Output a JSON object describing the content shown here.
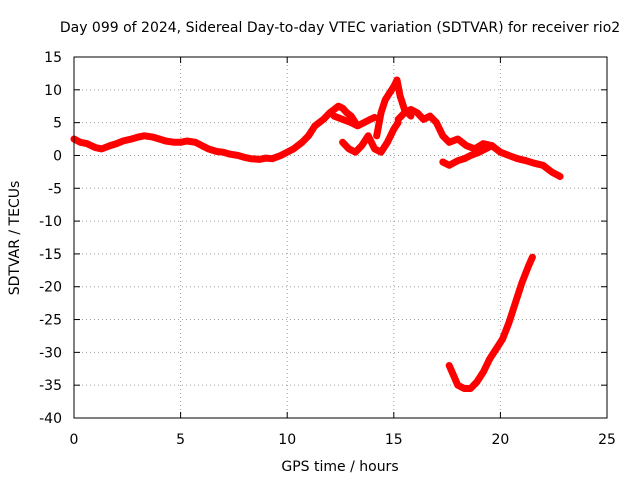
{
  "chart_data": {
    "type": "line",
    "title": "Day 099 of 2024, Sidereal Day-to-day VTEC variation (SDTVAR) for receiver rio2",
    "xlabel": "GPS time / hours",
    "ylabel": "SDTVAR / TECUs",
    "xlim": [
      0,
      25
    ],
    "ylim": [
      -40,
      15
    ],
    "xticks": [
      0,
      5,
      10,
      15,
      20,
      25
    ],
    "xtick_labels": [
      "0",
      "5",
      "10",
      "15",
      "20",
      "25"
    ],
    "yticks": [
      15,
      10,
      5,
      0,
      -5,
      -10,
      -15,
      -20,
      -25,
      -30,
      -35,
      -40
    ],
    "ytick_labels": [
      "15",
      "10",
      "5",
      "0",
      "-5",
      "-10",
      "-15",
      "-20",
      "-25",
      "-30",
      "-35",
      "-40"
    ],
    "grid": true,
    "legend": "none",
    "series_color": "#ff0000",
    "series": [
      {
        "name": "main-trace",
        "x": [
          0.0,
          0.3,
          0.6,
          1.0,
          1.3,
          1.7,
          2.0,
          2.3,
          2.7,
          3.0,
          3.3,
          3.7,
          4.0,
          4.3,
          4.7,
          5.0,
          5.3,
          5.7,
          6.0,
          6.3,
          6.7,
          7.0,
          7.3,
          7.7,
          8.0,
          8.3,
          8.7,
          9.0,
          9.3,
          9.7,
          10.0,
          10.3,
          10.7,
          11.0,
          11.3,
          11.7,
          12.0,
          12.2,
          12.4,
          12.6,
          12.8,
          13.0,
          13.2
        ],
        "y": [
          2.5,
          2.0,
          1.8,
          1.2,
          1.0,
          1.5,
          1.8,
          2.2,
          2.5,
          2.8,
          3.0,
          2.8,
          2.5,
          2.2,
          2.0,
          2.0,
          2.2,
          2.0,
          1.5,
          1.0,
          0.6,
          0.5,
          0.2,
          0.0,
          -0.3,
          -0.5,
          -0.6,
          -0.4,
          -0.5,
          0.0,
          0.5,
          1.0,
          2.0,
          3.0,
          4.5,
          5.5,
          6.5,
          7.0,
          7.5,
          7.2,
          6.5,
          6.0,
          5.0
        ]
      },
      {
        "name": "mid-branch-a",
        "x": [
          12.2,
          12.6,
          13.0,
          13.3,
          13.6,
          13.9,
          14.1
        ],
        "y": [
          6.0,
          5.5,
          5.0,
          4.5,
          5.0,
          5.5,
          5.8
        ]
      },
      {
        "name": "mid-branch-b",
        "x": [
          12.6,
          12.9,
          13.2,
          13.5,
          13.8,
          14.1,
          14.4,
          14.7,
          15.0,
          15.2
        ],
        "y": [
          2.0,
          1.0,
          0.5,
          1.5,
          3.0,
          1.0,
          0.5,
          2.0,
          4.0,
          5.0
        ]
      },
      {
        "name": "spike",
        "x": [
          14.2,
          14.4,
          14.6,
          14.8,
          15.0,
          15.15,
          15.3,
          15.5,
          15.8
        ],
        "y": [
          3.0,
          6.5,
          8.5,
          9.5,
          10.5,
          11.5,
          9.0,
          7.0,
          6.0
        ]
      },
      {
        "name": "post-peak",
        "x": [
          15.2,
          15.5,
          15.8,
          16.1,
          16.4,
          16.7,
          17.0,
          17.3,
          17.6,
          18.0,
          18.4,
          18.8,
          19.2,
          19.6,
          20.0,
          20.4,
          20.8,
          21.2,
          21.6,
          22.0,
          22.4,
          22.8
        ],
        "y": [
          5.5,
          6.5,
          7.0,
          6.5,
          5.5,
          6.0,
          5.0,
          3.0,
          2.0,
          2.5,
          1.5,
          1.0,
          1.8,
          1.5,
          0.5,
          0.0,
          -0.5,
          -0.8,
          -1.2,
          -1.5,
          -2.5,
          -3.2
        ]
      },
      {
        "name": "lower-branch",
        "x": [
          17.3,
          17.6,
          18.0,
          18.3,
          18.6,
          19.0,
          19.3,
          19.6
        ],
        "y": [
          -1.0,
          -1.5,
          -0.8,
          -0.5,
          0.0,
          0.5,
          1.0,
          1.5
        ]
      },
      {
        "name": "deep-branch",
        "x": [
          17.6,
          17.8,
          18.0,
          18.3,
          18.6,
          18.9,
          19.2,
          19.5,
          19.8,
          20.1,
          20.4,
          20.7,
          21.0,
          21.3,
          21.5
        ],
        "y": [
          -32.0,
          -33.5,
          -35.0,
          -35.5,
          -35.5,
          -34.5,
          -33.0,
          -31.0,
          -29.5,
          -28.0,
          -25.5,
          -22.5,
          -19.5,
          -17.0,
          -15.5
        ]
      }
    ]
  }
}
